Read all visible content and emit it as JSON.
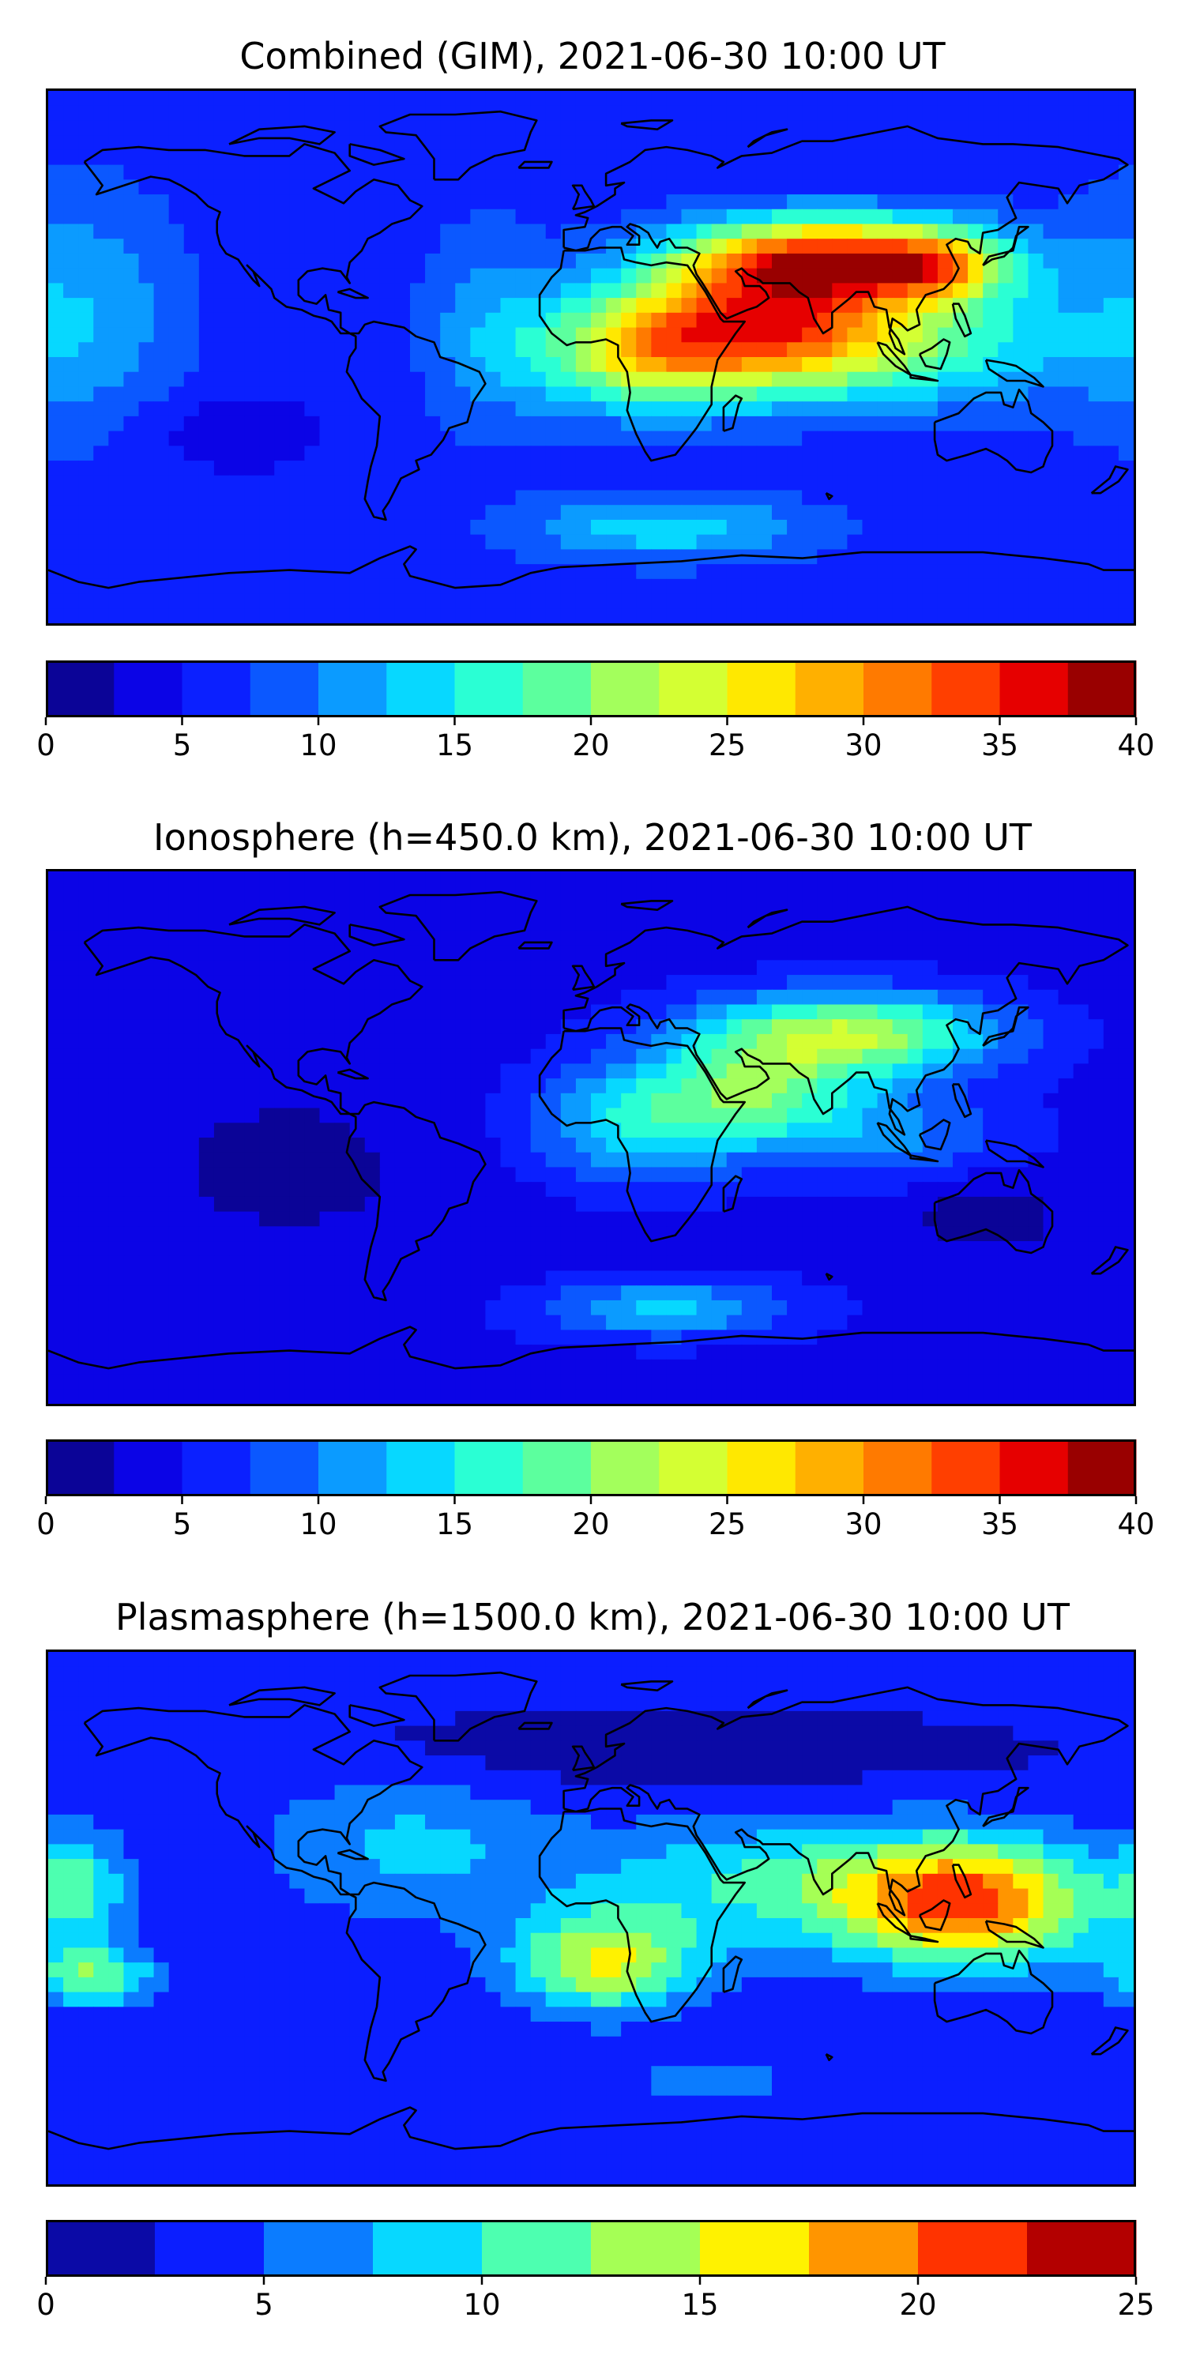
{
  "panels": [
    {
      "id": "combined",
      "title": "Combined (GIM), 2021-06-30 10:00 UT",
      "palette": [
        "#0b0497",
        "#0b04e6",
        "#0b20ff",
        "#0b58ff",
        "#0b9bff",
        "#07d8ff",
        "#2affd4",
        "#5cff9e",
        "#a3ff5c",
        "#d4ff33",
        "#ffe800",
        "#ffb000",
        "#ff7a00",
        "#ff3f00",
        "#e60000",
        "#990000"
      ],
      "colorbar": {
        "min": 0,
        "max": 40,
        "ticks": [
          0,
          5,
          10,
          15,
          20,
          25,
          30,
          35,
          40
        ]
      },
      "field": {
        "base": 6,
        "blobs": [
          {
            "lon": 80,
            "lat": 33,
            "amp": 28,
            "slon": 35,
            "slat": 10
          },
          {
            "lon": 115,
            "lat": 30,
            "amp": 10,
            "slon": 15,
            "slat": 8
          },
          {
            "lon": 55,
            "lat": 10,
            "amp": 20,
            "slon": 30,
            "slat": 14
          },
          {
            "lon": 15,
            "lat": 2,
            "amp": 16,
            "slon": 25,
            "slat": 14
          },
          {
            "lon": 100,
            "lat": 5,
            "amp": 12,
            "slon": 40,
            "slat": 15
          },
          {
            "lon": -35,
            "lat": 10,
            "amp": 5,
            "slon": 15,
            "slat": 25
          },
          {
            "lon": 25,
            "lat": -58,
            "amp": 8,
            "slon": 35,
            "slat": 8
          },
          {
            "lon": -170,
            "lat": 15,
            "amp": 6,
            "slon": 25,
            "slat": 30
          },
          {
            "lon": -120,
            "lat": -25,
            "amp": -3,
            "slon": 20,
            "slat": 10
          }
        ]
      }
    },
    {
      "id": "ionosphere",
      "title": "Ionosphere  (h=450.0 km), 2021-06-30 10:00 UT",
      "palette": [
        "#0b0497",
        "#0b04e6",
        "#0b20ff",
        "#0b58ff",
        "#0b9bff",
        "#07d8ff",
        "#2affd4",
        "#5cff9e",
        "#a3ff5c",
        "#d4ff33",
        "#ffe800",
        "#ffb000",
        "#ff7a00",
        "#ff3f00",
        "#e60000",
        "#990000"
      ],
      "colorbar": {
        "min": 0,
        "max": 40,
        "ticks": [
          0,
          5,
          10,
          15,
          20,
          25,
          30,
          35,
          40
        ]
      },
      "field": {
        "base": 4,
        "blobs": [
          {
            "lon": 85,
            "lat": 35,
            "amp": 18,
            "slon": 35,
            "slat": 10
          },
          {
            "lon": 55,
            "lat": 15,
            "amp": 12,
            "slon": 25,
            "slat": 12
          },
          {
            "lon": 15,
            "lat": 5,
            "amp": 10,
            "slon": 25,
            "slat": 14
          },
          {
            "lon": 100,
            "lat": 0,
            "amp": 6,
            "slon": 30,
            "slat": 12
          },
          {
            "lon": 25,
            "lat": -58,
            "amp": 9,
            "slon": 30,
            "slat": 7
          },
          {
            "lon": -100,
            "lat": -10,
            "amp": -2,
            "slon": 40,
            "slat": 25
          },
          {
            "lon": 130,
            "lat": -25,
            "amp": -3,
            "slon": 20,
            "slat": 10
          }
        ]
      }
    },
    {
      "id": "plasmasphere",
      "title": "Plasmasphere (h=1500.0 km), 2021-06-30 10:00 UT",
      "palette": [
        "#0b0aa6",
        "#0b1eff",
        "#0b7cff",
        "#07d8ff",
        "#4dffb0",
        "#a5ff55",
        "#fff200",
        "#ff9500",
        "#ff3300",
        "#b30000"
      ],
      "colorbar": {
        "min": 0,
        "max": 25,
        "ticks": [
          0,
          5,
          10,
          15,
          20,
          25
        ]
      },
      "field": {
        "base": 3,
        "blobs": [
          {
            "lon": 125,
            "lat": 5,
            "amp": 17,
            "slon": 30,
            "slat": 15
          },
          {
            "lon": 60,
            "lat": 12,
            "amp": 7,
            "slon": 45,
            "slat": 15
          },
          {
            "lon": 5,
            "lat": -15,
            "amp": 12,
            "slon": 22,
            "slat": 12
          },
          {
            "lon": -170,
            "lat": 10,
            "amp": 7,
            "slon": 12,
            "slat": 14
          },
          {
            "lon": -165,
            "lat": -20,
            "amp": 9,
            "slon": 15,
            "slat": 7
          },
          {
            "lon": -60,
            "lat": 25,
            "amp": 5,
            "slon": 35,
            "slat": 18
          },
          {
            "lon": 10,
            "lat": 55,
            "amp": -2,
            "slon": 90,
            "slat": 10
          },
          {
            "lon": 40,
            "lat": -55,
            "amp": 3,
            "slon": 25,
            "slat": 6
          }
        ]
      }
    }
  ],
  "chart_data": [
    {
      "type": "heatmap",
      "title": "Combined (GIM), 2021-06-30 10:00 UT",
      "x_range": [
        -180,
        180
      ],
      "y_range": [
        -90,
        90
      ],
      "colorbar_range": [
        0,
        40
      ],
      "colorbar_ticks": [
        0,
        5,
        10,
        15,
        20,
        25,
        30,
        35,
        40
      ],
      "levels": [
        0,
        2.5,
        5,
        7.5,
        10,
        12.5,
        15,
        17.5,
        20,
        22.5,
        25,
        27.5,
        30,
        32.5,
        35,
        37.5,
        40
      ]
    },
    {
      "type": "heatmap",
      "title": "Ionosphere  (h=450.0 km), 2021-06-30 10:00 UT",
      "x_range": [
        -180,
        180
      ],
      "y_range": [
        -90,
        90
      ],
      "colorbar_range": [
        0,
        40
      ],
      "colorbar_ticks": [
        0,
        5,
        10,
        15,
        20,
        25,
        30,
        35,
        40
      ],
      "levels": [
        0,
        2.5,
        5,
        7.5,
        10,
        12.5,
        15,
        17.5,
        20,
        22.5,
        25,
        27.5,
        30,
        32.5,
        35,
        37.5,
        40
      ]
    },
    {
      "type": "heatmap",
      "title": "Plasmasphere (h=1500.0 km), 2021-06-30 10:00 UT",
      "x_range": [
        -180,
        180
      ],
      "y_range": [
        -90,
        90
      ],
      "colorbar_range": [
        0,
        25
      ],
      "colorbar_ticks": [
        0,
        5,
        10,
        15,
        20,
        25
      ],
      "levels": [
        0,
        2.5,
        5,
        7.5,
        10,
        12.5,
        15,
        17.5,
        20,
        22.5,
        25
      ]
    }
  ]
}
